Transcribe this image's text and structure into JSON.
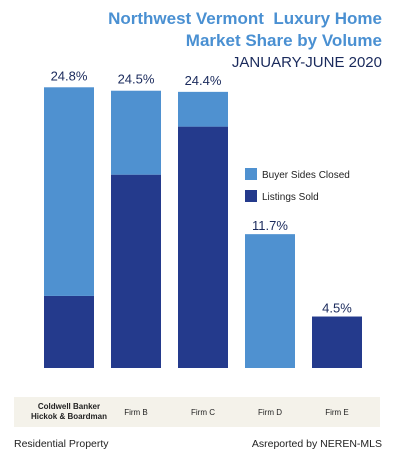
{
  "title_line1": "Northwest Vermont  Luxury Home",
  "title_line2": "Market Share by Volume",
  "subtitle": "JANUARY-JUNE 2020",
  "footer_left": "Residential Property",
  "footer_right": "Asreported by NEREN-MLS",
  "colors": {
    "buyer_sides": "#4f91d0",
    "listings_sold": "#243a8c",
    "title": "#4a90d2",
    "band": "#f4f2ea"
  },
  "chart_data": {
    "type": "bar",
    "stacked": true,
    "categories": [
      "Coldwell Banker\nHickok & Boardman",
      "Firm B",
      "Firm C",
      "Firm D",
      "Firm E"
    ],
    "series": [
      {
        "name": "Listings Sold",
        "color": "#243a8c",
        "values": [
          6.3,
          16.9,
          21.1,
          0,
          4.5
        ]
      },
      {
        "name": "Buyer Sides Closed",
        "color": "#4f91d0",
        "values": [
          18.5,
          7.6,
          3.3,
          11.7,
          0
        ]
      }
    ],
    "totals_labels": [
      "24.8%",
      "24.5%",
      "24.4%",
      "11.7%",
      "4.5%"
    ],
    "ylim": [
      0,
      25
    ],
    "legend": {
      "position": "right",
      "items": [
        "Buyer Sides Closed",
        "Listings Sold"
      ]
    },
    "grid": false
  }
}
